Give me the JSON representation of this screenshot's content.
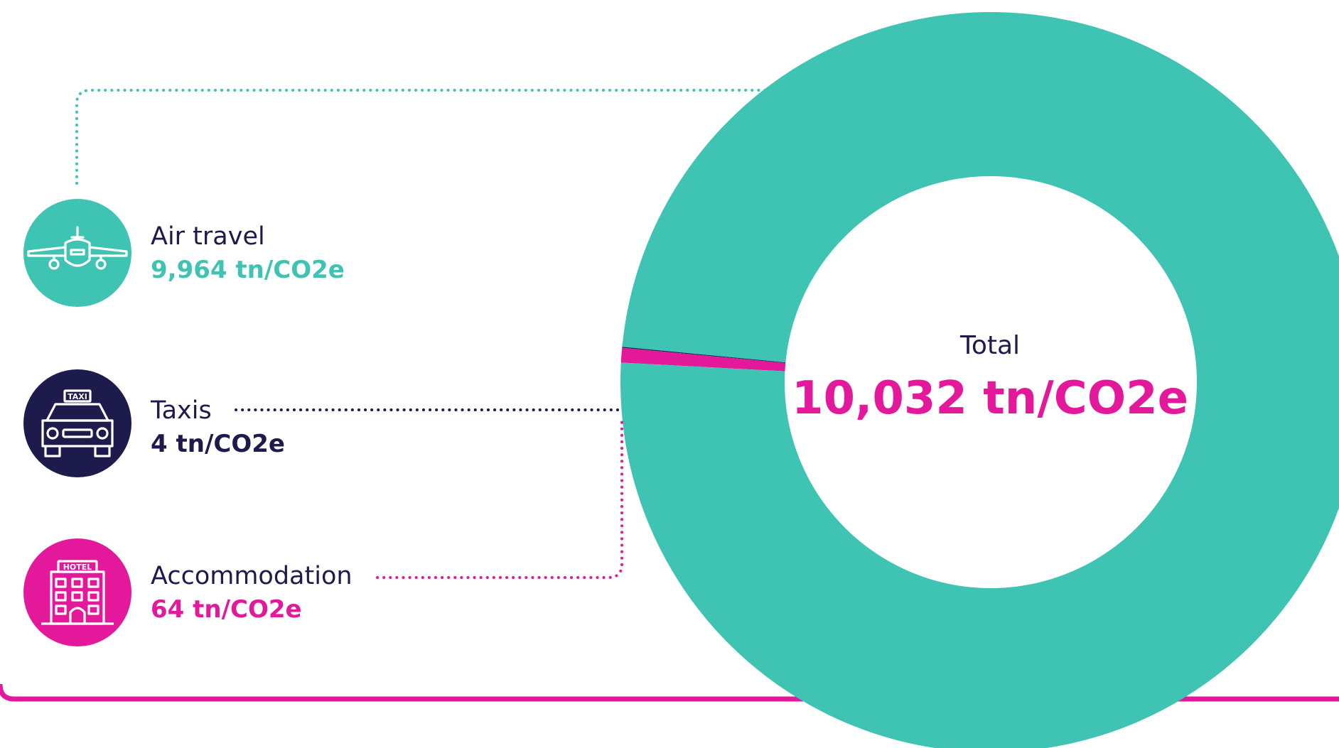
{
  "chart_data": {
    "type": "pie",
    "center_label": "Total",
    "center_value": "10,032 tn/CO2e",
    "unit": "tn/CO2e",
    "slices": [
      {
        "name": "Air travel",
        "value": 9964,
        "value_label": "9,964 tn/CO2e",
        "color": "#3fc3b3",
        "icon": "airplane-icon"
      },
      {
        "name": "Taxis",
        "value": 4,
        "value_label": "4 tn/CO2e",
        "color": "#1d1b4c",
        "icon": "taxi-icon"
      },
      {
        "name": "Accommodation",
        "value": 64,
        "value_label": "64 tn/CO2e",
        "color": "#e3189b",
        "icon": "hotel-icon"
      }
    ]
  },
  "colors": {
    "accent": "#e3189b",
    "teal": "#3fc3b3",
    "navy": "#1d1b4c"
  },
  "icons": {
    "taxi_sign": "TAXI",
    "hotel_sign": "HOTEL"
  }
}
